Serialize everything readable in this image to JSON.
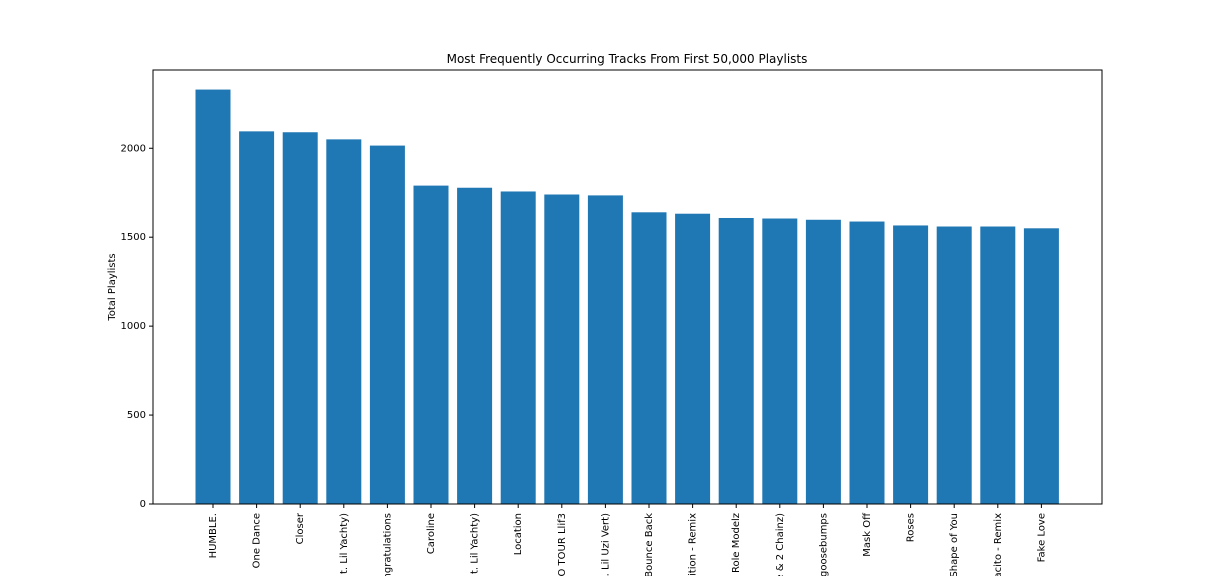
{
  "chart_data": {
    "type": "bar",
    "title": "Most Frequently Occurring Tracks From First 50,000 Playlists",
    "xlabel": "",
    "ylabel": "Total Playlists",
    "ylim": [
      0,
      2440
    ],
    "yticks": [
      0,
      500,
      1000,
      1500,
      2000
    ],
    "grid": false,
    "bar_color": "#1f77b4",
    "categories": [
      "HUMBLE.",
      "One Dance",
      "Closer",
      "t. Lil Yachty)",
      "ngratulations",
      "Caroline",
      "t. Lil Yachty)",
      "Location",
      "O TOUR Llif3",
      ". Lil Uzi Vert)",
      "Bounce Back",
      "ition - Remix",
      "Role Modelz",
      "e & 2 Chainz)",
      "goosebumps",
      "Mask Off",
      "Roses",
      "Shape of You",
      "acito - Remix",
      "Fake Love"
    ],
    "values": [
      2330,
      2095,
      2090,
      2050,
      2015,
      1790,
      1778,
      1757,
      1740,
      1735,
      1640,
      1632,
      1608,
      1605,
      1598,
      1588,
      1566,
      1560,
      1560,
      1550
    ]
  }
}
